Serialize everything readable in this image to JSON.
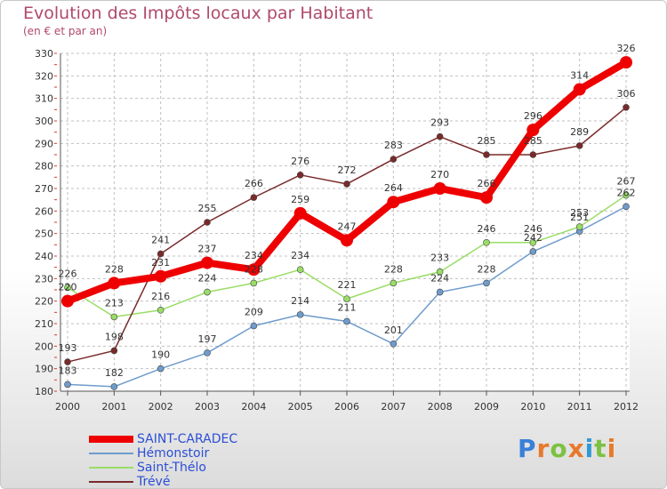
{
  "title": "Evolution des Impôts locaux par Habitant",
  "subtitle": "(en € et par an)",
  "logo": {
    "text": "Proxiti",
    "letters": [
      "P",
      "r",
      "o",
      "x",
      "i",
      "t",
      "i"
    ],
    "colors": [
      "#3b7fd9",
      "#e8792a",
      "#7cc242",
      "#e8792a",
      "#2f9ad6",
      "#7cc242",
      "#e8792a"
    ]
  },
  "chart_data": {
    "type": "line",
    "title": "Evolution des Impôts locaux par Habitant",
    "ylabel": "(en € et par an)",
    "xlabel": "",
    "categories": [
      "2000",
      "2001",
      "2002",
      "2003",
      "2004",
      "2005",
      "2006",
      "2007",
      "2008",
      "2009",
      "2010",
      "2011",
      "2012"
    ],
    "ylim": [
      180,
      330
    ],
    "yticks": [
      180,
      190,
      200,
      210,
      220,
      230,
      240,
      250,
      260,
      270,
      280,
      290,
      300,
      310,
      320,
      330
    ],
    "grid": true,
    "legend_position": "bottom-left",
    "series": [
      {
        "name": "SAINT-CARADEC",
        "color": "#ee0000",
        "emphasis": true,
        "values": [
          220,
          228,
          231,
          237,
          234,
          259,
          247,
          264,
          270,
          266,
          296,
          314,
          326
        ]
      },
      {
        "name": "Hémonstoir",
        "color": "#6f9ccc",
        "emphasis": false,
        "values": [
          183,
          182,
          190,
          197,
          209,
          214,
          211,
          201,
          224,
          228,
          242,
          251,
          262
        ]
      },
      {
        "name": "Saint-Thélo",
        "color": "#99dd66",
        "emphasis": false,
        "values": [
          226,
          213,
          216,
          224,
          228,
          234,
          221,
          228,
          233,
          246,
          246,
          253,
          267
        ]
      },
      {
        "name": "Trévé",
        "color": "#7a2a2a",
        "emphasis": false,
        "values": [
          193,
          198,
          241,
          255,
          266,
          276,
          272,
          283,
          293,
          285,
          285,
          289,
          306
        ]
      }
    ]
  }
}
